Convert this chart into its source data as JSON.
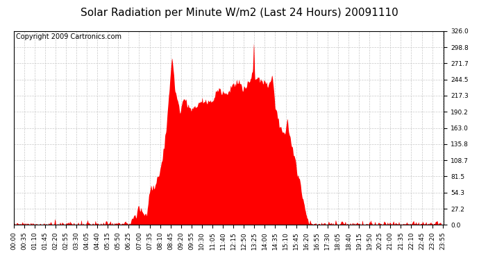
{
  "title": "Solar Radiation per Minute W/m2 (Last 24 Hours) 20091110",
  "copyright": "Copyright 2009 Cartronics.com",
  "bg_color": "#ffffff",
  "plot_bg_color": "#ffffff",
  "fill_color": "#ff0000",
  "dashed_line_color": "#ff0000",
  "grid_color": "#c8c8c8",
  "ymin": 0.0,
  "ymax": 326.0,
  "yticks": [
    0.0,
    27.2,
    54.3,
    81.5,
    108.7,
    135.8,
    163.0,
    190.2,
    217.3,
    244.5,
    271.7,
    298.8,
    326.0
  ],
  "num_points": 1440,
  "title_fontsize": 11,
  "copyright_fontsize": 7,
  "tick_fontsize": 6.5,
  "xtick_interval": 35
}
